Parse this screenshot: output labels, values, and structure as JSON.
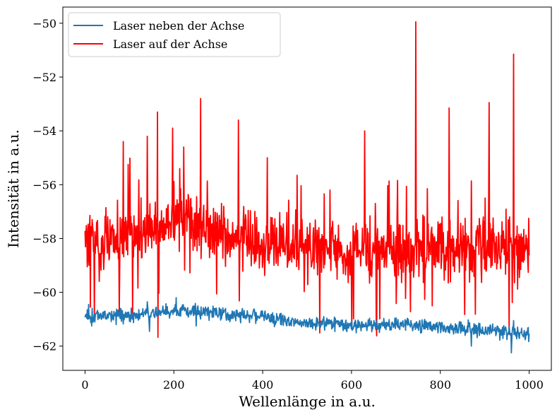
{
  "chart_data": {
    "type": "line",
    "title": "",
    "xlabel": "Wellenlänge in a.u.",
    "ylabel": "Intensität in a.u.",
    "xlim": [
      -50,
      1050
    ],
    "ylim": [
      -62.9,
      -49.4
    ],
    "xticks": [
      0,
      200,
      400,
      600,
      800,
      1000
    ],
    "xtick_labels": [
      "0",
      "200",
      "400",
      "600",
      "800",
      "1000"
    ],
    "yticks": [
      -62,
      -60,
      -58,
      -56,
      -54,
      -52,
      -50
    ],
    "ytick_labels": [
      "−62",
      "−60",
      "−58",
      "−56",
      "−54",
      "−52",
      "−50"
    ],
    "grid": false,
    "legend_position": "top-left",
    "series": [
      {
        "name": "Laser neben der Achse",
        "color": "#1f77b4",
        "x_start": 0,
        "x_end": 1000,
        "n_points": 1000,
        "profile_x": [
          0,
          100,
          200,
          300,
          400,
          500,
          600,
          700,
          800,
          900,
          1000
        ],
        "profile_mean": [
          -60.85,
          -60.85,
          -60.7,
          -60.75,
          -60.9,
          -61.1,
          -61.2,
          -61.2,
          -61.25,
          -61.4,
          -61.55
        ],
        "noise_amplitude": 0.22,
        "spikes": [
          {
            "x": 8,
            "y": -60.45
          },
          {
            "x": 15,
            "y": -61.25
          },
          {
            "x": 70,
            "y": -61.2
          },
          {
            "x": 140,
            "y": -60.35
          },
          {
            "x": 145,
            "y": -61.45
          },
          {
            "x": 205,
            "y": -60.2
          },
          {
            "x": 250,
            "y": -61.25
          },
          {
            "x": 520,
            "y": -61.4
          },
          {
            "x": 870,
            "y": -62.0
          },
          {
            "x": 960,
            "y": -62.25
          },
          {
            "x": 965,
            "y": -61.05
          }
        ]
      },
      {
        "name": "Laser auf der Achse",
        "color": "#ff0000",
        "x_start": 0,
        "x_end": 1000,
        "n_points": 1000,
        "profile_x": [
          0,
          100,
          200,
          300,
          400,
          500,
          600,
          700,
          800,
          900,
          1000
        ],
        "profile_mean": [
          -58.0,
          -57.9,
          -57.4,
          -57.7,
          -58.2,
          -58.3,
          -58.5,
          -58.3,
          -58.4,
          -58.3,
          -58.2
        ],
        "noise_amplitude": 0.95,
        "spikes": [
          {
            "x": 12,
            "y": -60.55
          },
          {
            "x": 97,
            "y": -55.25
          },
          {
            "x": 140,
            "y": -54.2
          },
          {
            "x": 163,
            "y": -53.3
          },
          {
            "x": 197,
            "y": -53.9
          },
          {
            "x": 222,
            "y": -54.6
          },
          {
            "x": 260,
            "y": -52.8
          },
          {
            "x": 345,
            "y": -53.6
          },
          {
            "x": 410,
            "y": -55.0
          },
          {
            "x": 630,
            "y": -54.0
          },
          {
            "x": 656,
            "y": -61.0
          },
          {
            "x": 745,
            "y": -49.95
          },
          {
            "x": 820,
            "y": -53.15
          },
          {
            "x": 910,
            "y": -52.95
          },
          {
            "x": 955,
            "y": -61.55
          },
          {
            "x": 965,
            "y": -51.15
          }
        ]
      }
    ]
  }
}
